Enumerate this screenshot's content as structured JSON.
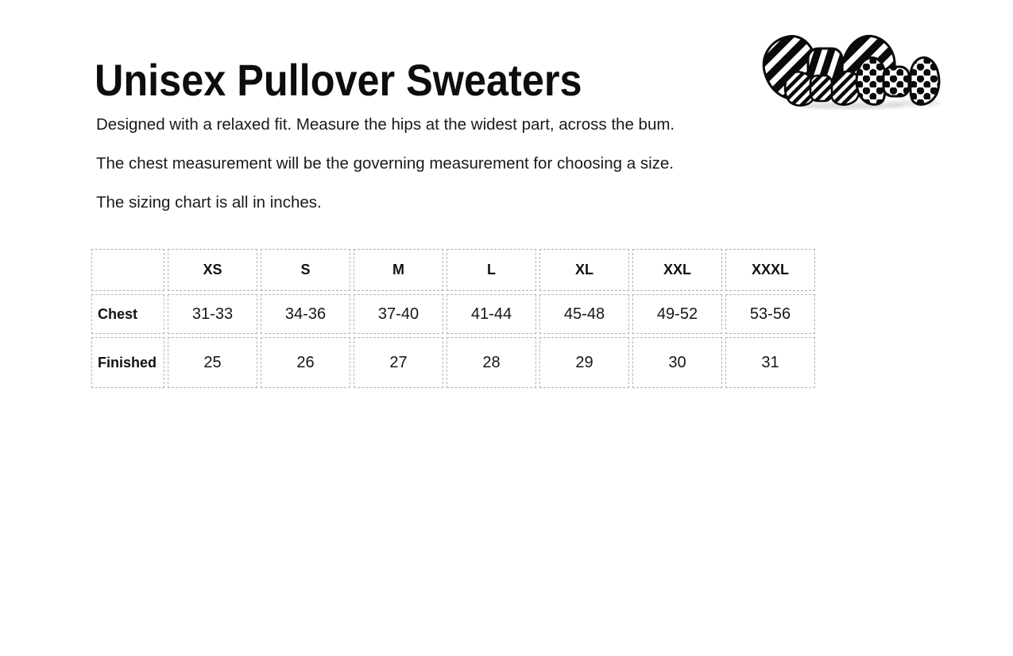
{
  "page": {
    "title": "Unisex Pullover Sweaters",
    "description_lines": [
      "Designed with a relaxed fit. Measure the hips at the widest part, across the bum.",
      "The chest measurement will be the governing measurement for choosing a size.",
      "The sizing chart is all in inches."
    ],
    "logo_icon": "bow-ties-logo",
    "units": "inches"
  },
  "size_table": {
    "columns": [
      "",
      "XS",
      "S",
      "M",
      "L",
      "XL",
      "XXL",
      "XXXL"
    ],
    "rows": [
      {
        "label": "Chest",
        "values": [
          "31-33",
          "34-36",
          "37-40",
          "41-44",
          "45-48",
          "49-52",
          "53-56"
        ]
      },
      {
        "label": "Finished",
        "values": [
          "25",
          "26",
          "27",
          "28",
          "29",
          "30",
          "31"
        ]
      }
    ]
  },
  "colors": {
    "background": "#ffffff",
    "text": "#1a1a1a",
    "title": "#0d0d0d",
    "table_border": "#b3b3b3",
    "logo_ink": "#0a0a0a"
  }
}
